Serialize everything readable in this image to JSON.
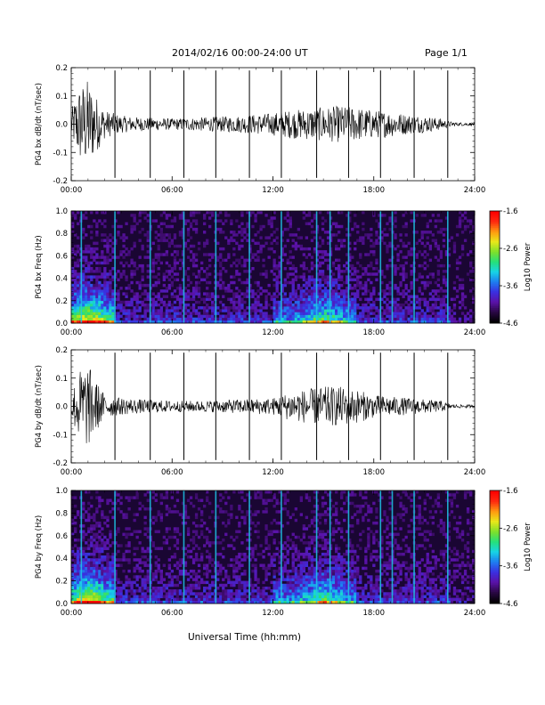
{
  "header": {
    "title": "2014/02/16  00:00-24:00 UT",
    "page": "Page 1/1"
  },
  "footer": {
    "xlabel": "Universal Time (hh:mm)"
  },
  "colors": {
    "trace": "#000000",
    "spectrogram_background": "#1a0633",
    "colormap": [
      "#000000",
      "#2a0845",
      "#5b12a8",
      "#3a2fe0",
      "#1e7df0",
      "#17d4e6",
      "#26e07a",
      "#7ee02a",
      "#e8e81a",
      "#ff9a10",
      "#ff2a10",
      "#ff0000"
    ]
  },
  "chart_data": [
    {
      "type": "line",
      "ylabel": "PG4 bx dB/dt (nT/sec)",
      "xlim": [
        0,
        24
      ],
      "ylim": [
        -0.2,
        0.2
      ],
      "yticks": [
        "0.2",
        "0.1",
        "0.0",
        "-0.1",
        "-0.2"
      ],
      "xticks": [
        "00:00",
        "06:00",
        "12:00",
        "18:00",
        "24:00"
      ],
      "spikes_hours": [
        2.6,
        4.7,
        6.7,
        8.6,
        10.6,
        12.5,
        14.6,
        16.5,
        18.4,
        20.4,
        22.4
      ],
      "envelope": {
        "hours": [
          0.0,
          0.5,
          1.0,
          1.5,
          2.0,
          3.0,
          4.0,
          6.0,
          8.0,
          10.0,
          12.0,
          13.0,
          14.0,
          15.0,
          16.0,
          17.0,
          18.0,
          19.0,
          20.0,
          21.0,
          22.0,
          22.5,
          23.0,
          24.0
        ],
        "amplitude": [
          0.05,
          0.14,
          0.16,
          0.1,
          0.05,
          0.03,
          0.025,
          0.02,
          0.025,
          0.03,
          0.04,
          0.05,
          0.055,
          0.06,
          0.065,
          0.06,
          0.05,
          0.045,
          0.035,
          0.03,
          0.02,
          0.01,
          0.006,
          0.006
        ]
      }
    },
    {
      "type": "heatmap",
      "ylabel": "PG4 bx Freq (Hz)",
      "colorbar_label": "Log10 Power",
      "xlim": [
        0,
        24
      ],
      "ylim": [
        0.0,
        1.0
      ],
      "yticks": [
        "1.0",
        "0.8",
        "0.6",
        "0.4",
        "0.2",
        "0.0"
      ],
      "xticks": [
        "00:00",
        "06:00",
        "12:00",
        "18:00",
        "24:00"
      ],
      "colorbar_range": [
        -4.6,
        -1.6
      ],
      "colorbar_ticks": [
        "-1.6",
        "-2.6",
        "-3.6",
        "-4.6"
      ],
      "spikes_hours": [
        0.6,
        2.6,
        4.7,
        6.7,
        8.6,
        10.6,
        12.5,
        14.6,
        15.4,
        16.5,
        18.4,
        19.1,
        20.4,
        22.4
      ]
    },
    {
      "type": "line",
      "ylabel": "PG4 by dB/dt (nT/sec)",
      "xlim": [
        0,
        24
      ],
      "ylim": [
        -0.2,
        0.2
      ],
      "yticks": [
        "0.2",
        "0.1",
        "0.0",
        "-0.1",
        "-0.2"
      ],
      "xticks": [
        "00:00",
        "06:00",
        "12:00",
        "18:00",
        "24:00"
      ],
      "spikes_hours": [
        2.6,
        4.7,
        6.7,
        8.6,
        10.6,
        12.5,
        14.6,
        16.5,
        18.4,
        20.4,
        22.4
      ],
      "envelope": {
        "hours": [
          0.0,
          0.5,
          1.0,
          1.5,
          2.0,
          3.0,
          4.0,
          6.0,
          8.0,
          10.0,
          12.0,
          13.0,
          14.0,
          15.0,
          16.0,
          17.0,
          18.0,
          19.0,
          20.0,
          21.0,
          22.0,
          22.5,
          23.0,
          24.0
        ],
        "amplitude": [
          0.05,
          0.13,
          0.15,
          0.09,
          0.04,
          0.03,
          0.025,
          0.02,
          0.02,
          0.025,
          0.03,
          0.05,
          0.06,
          0.07,
          0.07,
          0.06,
          0.04,
          0.035,
          0.03,
          0.025,
          0.02,
          0.01,
          0.006,
          0.006
        ]
      }
    },
    {
      "type": "heatmap",
      "ylabel": "PG4 by Freq (Hz)",
      "colorbar_label": "Log10 Power",
      "xlim": [
        0,
        24
      ],
      "ylim": [
        0.0,
        1.0
      ],
      "yticks": [
        "1.0",
        "0.8",
        "0.6",
        "0.4",
        "0.2",
        "0.0"
      ],
      "xticks": [
        "00:00",
        "06:00",
        "12:00",
        "18:00",
        "24:00"
      ],
      "colorbar_range": [
        -4.6,
        -1.6
      ],
      "colorbar_ticks": [
        "-1.6",
        "-2.6",
        "-3.6",
        "-4.6"
      ],
      "spikes_hours": [
        0.6,
        2.6,
        4.7,
        6.7,
        8.6,
        10.6,
        12.5,
        14.6,
        15.4,
        16.5,
        18.4,
        19.1,
        20.4,
        22.4
      ]
    }
  ]
}
